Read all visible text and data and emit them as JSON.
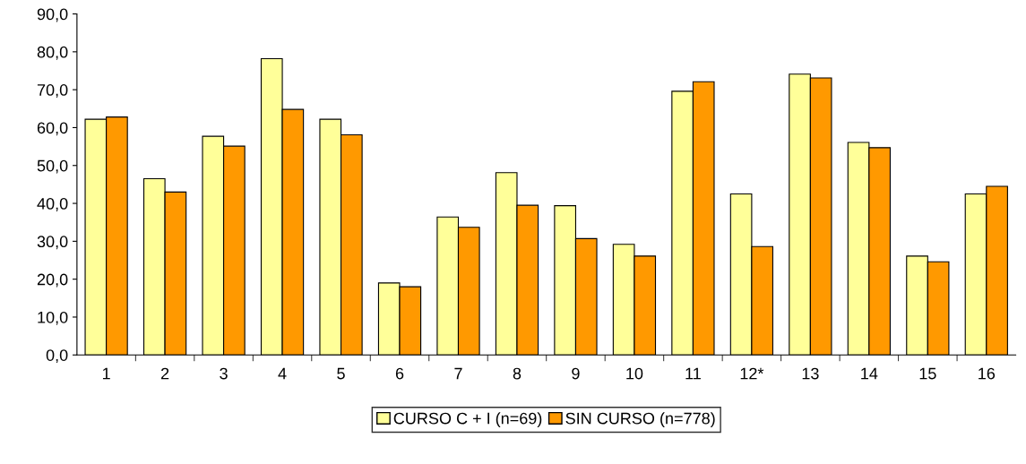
{
  "chart_data": {
    "type": "bar",
    "categories": [
      "1",
      "2",
      "3",
      "4",
      "5",
      "6",
      "7",
      "8",
      "9",
      "10",
      "11",
      "12*",
      "13",
      "14",
      "15",
      "16"
    ],
    "series": [
      {
        "name": "CURSO C + I (n=69)",
        "color": "#ffff99",
        "values": [
          62.2,
          46.5,
          57.7,
          78.2,
          62.2,
          19.0,
          36.4,
          48.1,
          39.4,
          29.2,
          69.6,
          42.5,
          74.1,
          56.1,
          26.1,
          42.5
        ]
      },
      {
        "name": "SIN CURSO (n=778)",
        "color": "#ff9900",
        "values": [
          62.8,
          43.0,
          55.1,
          64.8,
          58.1,
          18.0,
          33.7,
          39.5,
          30.7,
          26.1,
          72.1,
          28.6,
          73.1,
          54.7,
          24.6,
          44.5
        ]
      }
    ],
    "ylim": [
      0,
      90
    ],
    "yticks": [
      {
        "value": 0,
        "label": "0,0"
      },
      {
        "value": 10,
        "label": "10,0"
      },
      {
        "value": 20,
        "label": "20,0"
      },
      {
        "value": 30,
        "label": "30,0"
      },
      {
        "value": 40,
        "label": "40,0"
      },
      {
        "value": 50,
        "label": "50,0"
      },
      {
        "value": 60,
        "label": "60,0"
      },
      {
        "value": 70,
        "label": "70,0"
      },
      {
        "value": 80,
        "label": "80,0"
      },
      {
        "value": 90,
        "label": "90,0"
      }
    ],
    "grid": false,
    "legend": "bottom"
  }
}
